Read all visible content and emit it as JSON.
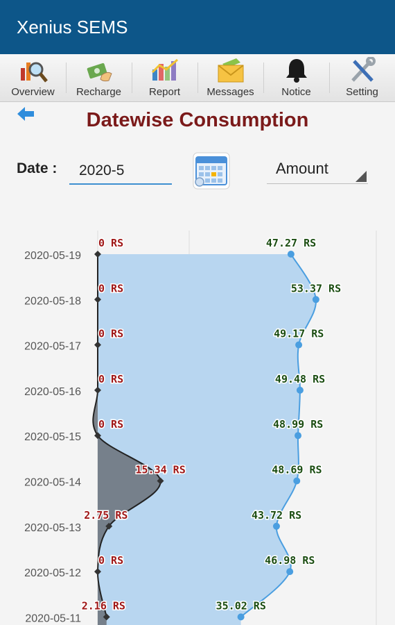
{
  "app": {
    "title": "Xenius SEMS"
  },
  "toolbar": [
    {
      "label": "Overview",
      "icon": "overview-chart-magnifier-icon"
    },
    {
      "label": "Recharge",
      "icon": "recharge-money-icon"
    },
    {
      "label": "Report",
      "icon": "report-chart-icon"
    },
    {
      "label": "Messages",
      "icon": "messages-envelope-icon"
    },
    {
      "label": "Notice",
      "icon": "notice-bell-icon"
    },
    {
      "label": "Setting",
      "icon": "setting-tools-icon"
    }
  ],
  "page": {
    "title": "Datewise Consumption",
    "back_icon": "back-arrow-icon"
  },
  "filters": {
    "date_label": "Date :",
    "date_value": "2020-5",
    "calendar_icon": "calendar-icon",
    "metric_selected": "Amount"
  },
  "chart_data": {
    "type": "area",
    "orientation": "horizontal",
    "categories": [
      "2020-05-19",
      "2020-05-18",
      "2020-05-17",
      "2020-05-16",
      "2020-05-15",
      "2020-05-14",
      "2020-05-13",
      "2020-05-12",
      "2020-05-11"
    ],
    "series": [
      {
        "values": [
          0,
          0,
          0,
          0,
          0,
          15.34,
          2.75,
          0,
          2.16
        ],
        "labels": [
          "0 RS",
          "0 RS",
          "0 RS",
          "0 RS",
          "0 RS",
          "15.34 RS",
          "2.75 RS",
          "0 RS",
          "2.16 RS"
        ],
        "color": "#5d6670",
        "label_color": "#a01818"
      },
      {
        "values": [
          47.27,
          53.37,
          49.17,
          49.48,
          48.99,
          48.69,
          43.72,
          46.98,
          35.02
        ],
        "labels": [
          "47.27 RS",
          "53.37 RS",
          "49.17 RS",
          "49.48 RS",
          "48.99 RS",
          "48.69 RS",
          "43.72 RS",
          "46.98 RS",
          "35.02 RS"
        ],
        "color": "#4a9ee0",
        "label_color": "#1b4d12"
      }
    ],
    "xlim": [
      0,
      60
    ],
    "grid": true,
    "legend": "none"
  }
}
